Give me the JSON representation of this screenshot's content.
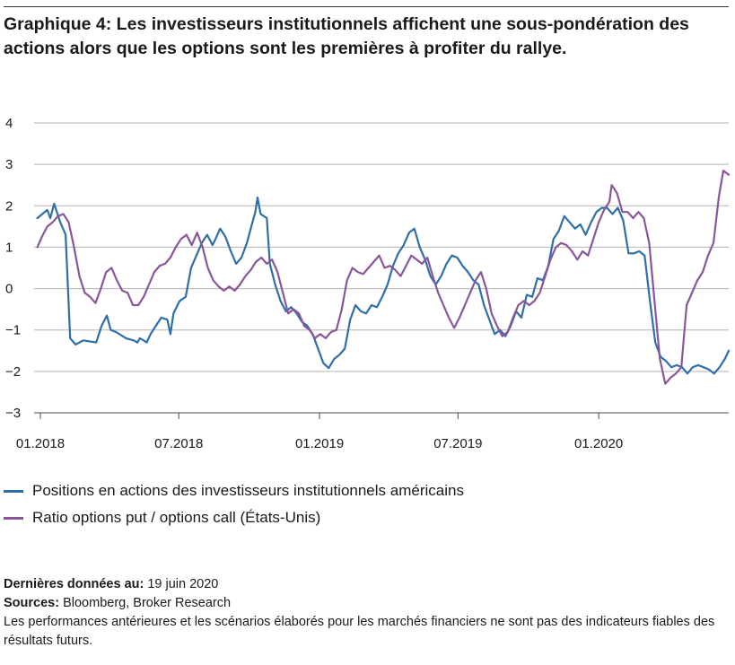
{
  "title": "Graphique 4: Les investisseurs institutionnels affichent une sous-pondération des actions alors que les options sont les premières à profiter du rallye.",
  "legend": [
    {
      "label": "Positions en actions des investisseurs institutionnels américains",
      "color": "#2f6fa8"
    },
    {
      "label": "Ratio options put / options call (États-Unis)",
      "color": "#8a569a"
    }
  ],
  "notes": {
    "last_data_label": "Dernières données au:",
    "last_data_value": "19 juin 2020",
    "sources_label": "Sources:",
    "sources_value": "Bloomberg, Broker Research",
    "disclaimer": "Les performances antérieures et les scénarios élaborés pour les marchés financiers ne sont pas des indicateurs fiables des résultats futurs."
  },
  "chart_data": {
    "type": "line",
    "title": "Graphique 4: Les investisseurs institutionnels affichent une sous-pondération des actions alors que les options sont les premières à profiter du rallye.",
    "xlabel": "",
    "ylabel": "",
    "ylim": [
      -3,
      4
    ],
    "yticks": [
      4,
      3,
      2,
      1,
      0,
      -1,
      -2,
      -3
    ],
    "ytick_labels": [
      "4",
      "3",
      "2",
      "1",
      "0",
      "−1",
      "−2",
      "−3"
    ],
    "xlim": [
      "2018-01-01",
      "2020-06-19"
    ],
    "xticks": [
      "2018-01-01",
      "2018-07-01",
      "2019-01-01",
      "2019-07-01",
      "2020-01-01"
    ],
    "xtick_labels": [
      "01.2018",
      "07.2018",
      "01.2019",
      "07.2019",
      "01.2020"
    ],
    "grid": "horizontal",
    "legend_position": "bottom-left",
    "series": [
      {
        "name": "Positions en actions des investisseurs institutionnels américains",
        "color": "#2f6fa8",
        "points": [
          [
            "2017-12-28",
            1.7
          ],
          [
            "2018-01-10",
            1.9
          ],
          [
            "2018-01-14",
            1.7
          ],
          [
            "2018-01-19",
            2.05
          ],
          [
            "2018-01-27",
            1.6
          ],
          [
            "2018-02-03",
            1.3
          ],
          [
            "2018-02-09",
            -1.2
          ],
          [
            "2018-02-16",
            -1.35
          ],
          [
            "2018-02-26",
            -1.25
          ],
          [
            "2018-03-15",
            -1.3
          ],
          [
            "2018-03-22",
            -0.9
          ],
          [
            "2018-03-29",
            -0.65
          ],
          [
            "2018-04-03",
            -1.0
          ],
          [
            "2018-04-10",
            -1.05
          ],
          [
            "2018-04-23",
            -1.2
          ],
          [
            "2018-05-03",
            -1.25
          ],
          [
            "2018-05-08",
            -1.3
          ],
          [
            "2018-05-11",
            -1.2
          ],
          [
            "2018-05-16",
            -1.25
          ],
          [
            "2018-05-20",
            -1.3
          ],
          [
            "2018-05-25",
            -1.1
          ],
          [
            "2018-06-01",
            -0.9
          ],
          [
            "2018-06-08",
            -0.7
          ],
          [
            "2018-06-16",
            -0.75
          ],
          [
            "2018-06-20",
            -1.1
          ],
          [
            "2018-06-24",
            -0.6
          ],
          [
            "2018-07-02",
            -0.3
          ],
          [
            "2018-07-10",
            -0.2
          ],
          [
            "2018-07-17",
            0.5
          ],
          [
            "2018-07-24",
            0.8
          ],
          [
            "2018-07-31",
            1.1
          ],
          [
            "2018-08-07",
            1.3
          ],
          [
            "2018-08-14",
            1.05
          ],
          [
            "2018-08-18",
            1.2
          ],
          [
            "2018-08-24",
            1.45
          ],
          [
            "2018-08-31",
            1.25
          ],
          [
            "2018-09-07",
            0.9
          ],
          [
            "2018-09-14",
            0.6
          ],
          [
            "2018-09-21",
            0.75
          ],
          [
            "2018-09-28",
            1.1
          ],
          [
            "2018-10-03",
            1.45
          ],
          [
            "2018-10-09",
            1.85
          ],
          [
            "2018-10-12",
            2.2
          ],
          [
            "2018-10-16",
            1.8
          ],
          [
            "2018-10-24",
            1.7
          ],
          [
            "2018-10-28",
            0.6
          ],
          [
            "2018-11-04",
            0.1
          ],
          [
            "2018-11-11",
            -0.3
          ],
          [
            "2018-11-18",
            -0.55
          ],
          [
            "2018-11-25",
            -0.45
          ],
          [
            "2018-12-02",
            -0.6
          ],
          [
            "2018-12-09",
            -0.8
          ],
          [
            "2018-12-16",
            -0.9
          ],
          [
            "2018-12-23",
            -1.1
          ],
          [
            "2018-12-30",
            -1.45
          ],
          [
            "2019-01-06",
            -1.8
          ],
          [
            "2019-01-13",
            -1.92
          ],
          [
            "2019-01-20",
            -1.7
          ],
          [
            "2019-01-27",
            -1.6
          ],
          [
            "2019-02-03",
            -1.45
          ],
          [
            "2019-02-10",
            -0.75
          ],
          [
            "2019-02-17",
            -0.4
          ],
          [
            "2019-02-24",
            -0.55
          ],
          [
            "2019-03-03",
            -0.6
          ],
          [
            "2019-03-10",
            -0.4
          ],
          [
            "2019-03-17",
            -0.45
          ],
          [
            "2019-03-24",
            -0.2
          ],
          [
            "2019-03-31",
            0.1
          ],
          [
            "2019-04-07",
            0.55
          ],
          [
            "2019-04-14",
            0.85
          ],
          [
            "2019-04-21",
            1.05
          ],
          [
            "2019-04-28",
            1.35
          ],
          [
            "2019-05-05",
            1.45
          ],
          [
            "2019-05-12",
            1.0
          ],
          [
            "2019-05-19",
            0.7
          ],
          [
            "2019-05-26",
            0.3
          ],
          [
            "2019-06-02",
            0.1
          ],
          [
            "2019-06-09",
            0.3
          ],
          [
            "2019-06-16",
            0.6
          ],
          [
            "2019-06-23",
            0.8
          ],
          [
            "2019-06-30",
            0.75
          ],
          [
            "2019-07-07",
            0.55
          ],
          [
            "2019-07-14",
            0.4
          ],
          [
            "2019-07-21",
            0.2
          ],
          [
            "2019-07-28",
            0.1
          ],
          [
            "2019-08-04",
            -0.4
          ],
          [
            "2019-08-11",
            -0.75
          ],
          [
            "2019-08-18",
            -1.1
          ],
          [
            "2019-08-25",
            -1.0
          ],
          [
            "2019-09-01",
            -1.15
          ],
          [
            "2019-09-08",
            -0.9
          ],
          [
            "2019-09-15",
            -0.55
          ],
          [
            "2019-09-22",
            -0.7
          ],
          [
            "2019-09-29",
            -0.15
          ],
          [
            "2019-10-06",
            -0.2
          ],
          [
            "2019-10-13",
            0.25
          ],
          [
            "2019-10-20",
            0.2
          ],
          [
            "2019-10-27",
            0.55
          ],
          [
            "2019-11-03",
            1.2
          ],
          [
            "2019-11-10",
            1.4
          ],
          [
            "2019-11-17",
            1.75
          ],
          [
            "2019-11-24",
            1.6
          ],
          [
            "2019-12-01",
            1.45
          ],
          [
            "2019-12-08",
            1.55
          ],
          [
            "2019-12-15",
            1.3
          ],
          [
            "2019-12-22",
            1.6
          ],
          [
            "2019-12-29",
            1.85
          ],
          [
            "2020-01-05",
            1.95
          ],
          [
            "2020-01-12",
            1.95
          ],
          [
            "2020-01-19",
            1.8
          ],
          [
            "2020-01-26",
            1.95
          ],
          [
            "2020-02-02",
            1.65
          ],
          [
            "2020-02-09",
            0.85
          ],
          [
            "2020-02-16",
            0.85
          ],
          [
            "2020-02-23",
            0.9
          ],
          [
            "2020-03-01",
            0.8
          ],
          [
            "2020-03-08",
            -0.3
          ],
          [
            "2020-03-15",
            -1.3
          ],
          [
            "2020-03-22",
            -1.65
          ],
          [
            "2020-03-29",
            -1.75
          ],
          [
            "2020-04-05",
            -1.9
          ],
          [
            "2020-04-12",
            -1.85
          ],
          [
            "2020-04-19",
            -1.9
          ],
          [
            "2020-04-26",
            -2.05
          ],
          [
            "2020-05-03",
            -1.9
          ],
          [
            "2020-05-10",
            -1.85
          ],
          [
            "2020-05-17",
            -1.9
          ],
          [
            "2020-05-24",
            -1.95
          ],
          [
            "2020-05-31",
            -2.05
          ],
          [
            "2020-06-07",
            -1.9
          ],
          [
            "2020-06-14",
            -1.7
          ],
          [
            "2020-06-19",
            -1.5
          ]
        ]
      },
      {
        "name": "Ratio options put / options call (États-Unis)",
        "color": "#8a569a",
        "points": [
          [
            "2017-12-28",
            1.0
          ],
          [
            "2018-01-03",
            1.25
          ],
          [
            "2018-01-10",
            1.5
          ],
          [
            "2018-01-17",
            1.6
          ],
          [
            "2018-01-24",
            1.75
          ],
          [
            "2018-01-31",
            1.8
          ],
          [
            "2018-02-07",
            1.6
          ],
          [
            "2018-02-14",
            1.0
          ],
          [
            "2018-02-21",
            0.3
          ],
          [
            "2018-02-28",
            -0.1
          ],
          [
            "2018-03-07",
            -0.2
          ],
          [
            "2018-03-14",
            -0.35
          ],
          [
            "2018-03-21",
            0.0
          ],
          [
            "2018-03-28",
            0.4
          ],
          [
            "2018-04-04",
            0.5
          ],
          [
            "2018-04-11",
            0.2
          ],
          [
            "2018-04-18",
            -0.05
          ],
          [
            "2018-04-25",
            -0.1
          ],
          [
            "2018-05-02",
            -0.4
          ],
          [
            "2018-05-09",
            -0.4
          ],
          [
            "2018-05-16",
            -0.2
          ],
          [
            "2018-05-23",
            0.1
          ],
          [
            "2018-05-30",
            0.4
          ],
          [
            "2018-06-06",
            0.55
          ],
          [
            "2018-06-13",
            0.6
          ],
          [
            "2018-06-20",
            0.75
          ],
          [
            "2018-06-27",
            1.0
          ],
          [
            "2018-07-04",
            1.2
          ],
          [
            "2018-07-11",
            1.3
          ],
          [
            "2018-07-18",
            1.05
          ],
          [
            "2018-07-25",
            1.35
          ],
          [
            "2018-08-01",
            1.0
          ],
          [
            "2018-08-08",
            0.5
          ],
          [
            "2018-08-15",
            0.2
          ],
          [
            "2018-08-22",
            0.05
          ],
          [
            "2018-08-29",
            -0.05
          ],
          [
            "2018-09-05",
            0.05
          ],
          [
            "2018-09-12",
            -0.05
          ],
          [
            "2018-09-19",
            0.1
          ],
          [
            "2018-09-26",
            0.3
          ],
          [
            "2018-10-03",
            0.45
          ],
          [
            "2018-10-10",
            0.65
          ],
          [
            "2018-10-17",
            0.75
          ],
          [
            "2018-10-24",
            0.6
          ],
          [
            "2018-10-31",
            0.7
          ],
          [
            "2018-11-07",
            0.4
          ],
          [
            "2018-11-14",
            -0.1
          ],
          [
            "2018-11-21",
            -0.6
          ],
          [
            "2018-11-28",
            -0.5
          ],
          [
            "2018-12-05",
            -0.6
          ],
          [
            "2018-12-12",
            -0.9
          ],
          [
            "2018-12-19",
            -1.0
          ],
          [
            "2018-12-26",
            -1.2
          ],
          [
            "2019-01-02",
            -1.1
          ],
          [
            "2019-01-09",
            -1.2
          ],
          [
            "2019-01-16",
            -1.05
          ],
          [
            "2019-01-23",
            -1.0
          ],
          [
            "2019-01-30",
            -0.5
          ],
          [
            "2019-02-06",
            0.2
          ],
          [
            "2019-02-13",
            0.5
          ],
          [
            "2019-02-20",
            0.4
          ],
          [
            "2019-02-27",
            0.35
          ],
          [
            "2019-03-06",
            0.5
          ],
          [
            "2019-03-13",
            0.65
          ],
          [
            "2019-03-20",
            0.8
          ],
          [
            "2019-03-27",
            0.5
          ],
          [
            "2019-04-03",
            0.55
          ],
          [
            "2019-04-10",
            0.45
          ],
          [
            "2019-04-17",
            0.3
          ],
          [
            "2019-04-24",
            0.55
          ],
          [
            "2019-05-01",
            0.8
          ],
          [
            "2019-05-08",
            0.7
          ],
          [
            "2019-05-15",
            0.6
          ],
          [
            "2019-05-22",
            0.75
          ],
          [
            "2019-05-29",
            0.3
          ],
          [
            "2019-06-05",
            -0.1
          ],
          [
            "2019-06-12",
            -0.4
          ],
          [
            "2019-06-19",
            -0.7
          ],
          [
            "2019-06-26",
            -0.95
          ],
          [
            "2019-07-03",
            -0.7
          ],
          [
            "2019-07-10",
            -0.4
          ],
          [
            "2019-07-17",
            -0.1
          ],
          [
            "2019-07-24",
            0.2
          ],
          [
            "2019-07-31",
            0.4
          ],
          [
            "2019-08-07",
            0.0
          ],
          [
            "2019-08-14",
            -0.6
          ],
          [
            "2019-08-21",
            -0.9
          ],
          [
            "2019-08-28",
            -1.15
          ],
          [
            "2019-09-04",
            -1.05
          ],
          [
            "2019-09-11",
            -0.7
          ],
          [
            "2019-09-18",
            -0.4
          ],
          [
            "2019-09-25",
            -0.3
          ],
          [
            "2019-10-02",
            -0.4
          ],
          [
            "2019-10-09",
            -0.3
          ],
          [
            "2019-10-16",
            -0.1
          ],
          [
            "2019-10-23",
            0.3
          ],
          [
            "2019-10-30",
            0.7
          ],
          [
            "2019-11-06",
            1.0
          ],
          [
            "2019-11-13",
            1.1
          ],
          [
            "2019-11-20",
            1.05
          ],
          [
            "2019-11-27",
            0.9
          ],
          [
            "2019-12-04",
            0.7
          ],
          [
            "2019-12-11",
            0.9
          ],
          [
            "2019-12-18",
            0.8
          ],
          [
            "2019-12-25",
            1.2
          ],
          [
            "2020-01-01",
            1.6
          ],
          [
            "2020-01-08",
            1.9
          ],
          [
            "2020-01-15",
            2.1
          ],
          [
            "2020-01-18",
            2.5
          ],
          [
            "2020-01-25",
            2.3
          ],
          [
            "2020-02-01",
            1.85
          ],
          [
            "2020-02-08",
            1.85
          ],
          [
            "2020-02-15",
            1.7
          ],
          [
            "2020-02-22",
            1.85
          ],
          [
            "2020-02-29",
            1.7
          ],
          [
            "2020-03-07",
            1.1
          ],
          [
            "2020-03-14",
            -0.3
          ],
          [
            "2020-03-21",
            -1.7
          ],
          [
            "2020-03-28",
            -2.3
          ],
          [
            "2020-04-04",
            -2.15
          ],
          [
            "2020-04-11",
            -2.05
          ],
          [
            "2020-04-18",
            -1.9
          ],
          [
            "2020-04-25",
            -0.4
          ],
          [
            "2020-05-02",
            -0.1
          ],
          [
            "2020-05-09",
            0.2
          ],
          [
            "2020-05-16",
            0.4
          ],
          [
            "2020-05-23",
            0.8
          ],
          [
            "2020-05-30",
            1.1
          ],
          [
            "2020-06-06",
            2.2
          ],
          [
            "2020-06-12",
            2.85
          ],
          [
            "2020-06-19",
            2.75
          ]
        ]
      }
    ]
  }
}
